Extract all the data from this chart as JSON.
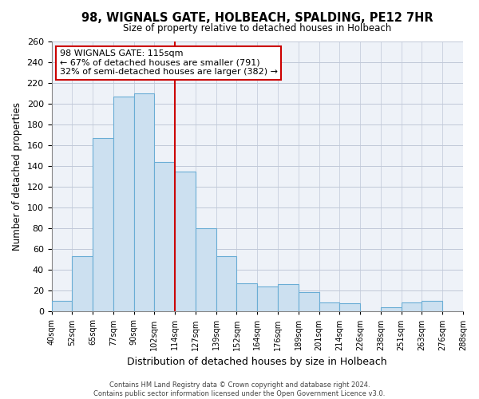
{
  "title": "98, WIGNALS GATE, HOLBEACH, SPALDING, PE12 7HR",
  "subtitle": "Size of property relative to detached houses in Holbeach",
  "xlabel": "Distribution of detached houses by size in Holbeach",
  "ylabel": "Number of detached properties",
  "bar_labels": [
    "40sqm",
    "52sqm",
    "65sqm",
    "77sqm",
    "90sqm",
    "102sqm",
    "114sqm",
    "127sqm",
    "139sqm",
    "152sqm",
    "164sqm",
    "176sqm",
    "189sqm",
    "201sqm",
    "214sqm",
    "226sqm",
    "238sqm",
    "251sqm",
    "263sqm",
    "276sqm",
    "288sqm"
  ],
  "bar_values": [
    10,
    53,
    167,
    207,
    210,
    144,
    135,
    80,
    53,
    27,
    24,
    26,
    19,
    9,
    8,
    0,
    4,
    9,
    10,
    0
  ],
  "bar_color": "#cce0f0",
  "bar_edge_color": "#6aadd5",
  "marker_label_index": 6,
  "marker_color": "#cc0000",
  "ylim": [
    0,
    260
  ],
  "yticks": [
    0,
    20,
    40,
    60,
    80,
    100,
    120,
    140,
    160,
    180,
    200,
    220,
    240,
    260
  ],
  "annotation_title": "98 WIGNALS GATE: 115sqm",
  "annotation_line1": "← 67% of detached houses are smaller (791)",
  "annotation_line2": "32% of semi-detached houses are larger (382) →",
  "annotation_box_color": "#ffffff",
  "annotation_box_edge": "#cc0000",
  "footer1": "Contains HM Land Registry data © Crown copyright and database right 2024.",
  "footer2": "Contains public sector information licensed under the Open Government Licence v3.0.",
  "bg_color": "#e8eef5",
  "plot_bg_color": "#eef2f8"
}
